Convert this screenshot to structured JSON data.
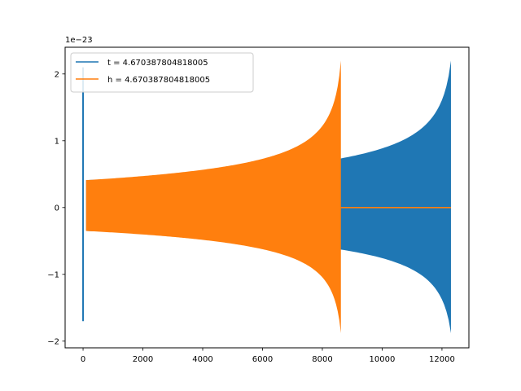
{
  "chart_data": {
    "type": "line",
    "title": "",
    "xlabel": "",
    "ylabel": "",
    "y_offset_label": "1e−23",
    "xlim": [
      -600,
      12900
    ],
    "ylim": [
      -2.1,
      2.4
    ],
    "x_ticks": [
      0,
      2000,
      4000,
      6000,
      8000,
      10000,
      12000
    ],
    "x_tick_labels": [
      "0",
      "2000",
      "4000",
      "6000",
      "8000",
      "10000",
      "12000"
    ],
    "y_ticks": [
      -2,
      -1,
      0,
      1,
      2
    ],
    "y_tick_labels": [
      "−2",
      "−1",
      "0",
      "1",
      "2"
    ],
    "grid": false,
    "legend_position": "top-left",
    "series": [
      {
        "name": "t = 4.670387804818005",
        "color": "#1f77b4",
        "description_points": {
          "x": [
            0,
            100,
            8600,
            12300
          ],
          "envelope_upper": [
            2.1,
            0.41,
            0.51,
            2.2
          ],
          "envelope_lower": [
            -1.7,
            -0.41,
            -0.51,
            -1.88
          ]
        },
        "x_start": 0,
        "x_end": 12300
      },
      {
        "name": "h = 4.670387804818005",
        "color": "#ff7f0e",
        "description_points": {
          "x": [
            100,
            8620,
            8650,
            12300
          ],
          "envelope_upper": [
            0.41,
            2.2,
            0.0,
            0.0
          ],
          "envelope_lower": [
            -0.41,
            -1.88,
            0.0,
            0.0
          ]
        },
        "x_start": 100,
        "x_end": 12300
      }
    ]
  }
}
